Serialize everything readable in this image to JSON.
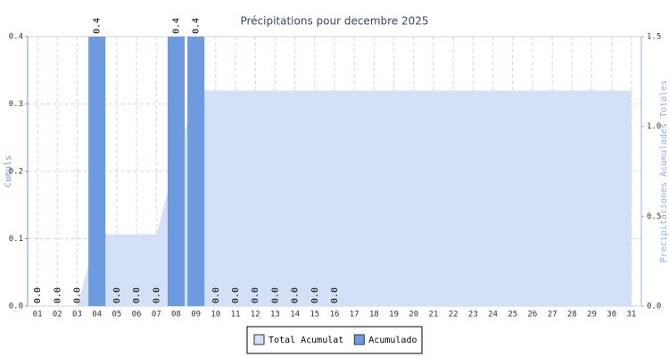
{
  "chart_data": {
    "type": "bar",
    "title": "Précipitations pour decembre 2025",
    "ylabel": "Cumuls",
    "y2label": "Precipitaciones Acumulades Totales",
    "categories": [
      "01",
      "02",
      "03",
      "04",
      "05",
      "06",
      "07",
      "08",
      "09",
      "10",
      "11",
      "12",
      "13",
      "14",
      "15",
      "16",
      "17",
      "18",
      "19",
      "20",
      "21",
      "22",
      "23",
      "24",
      "25",
      "26",
      "27",
      "28",
      "29",
      "30",
      "31"
    ],
    "series": [
      {
        "name": "Total Acumulat",
        "type": "area",
        "axis": "y2",
        "color": "#d3e0f8",
        "values": [
          0,
          0,
          0,
          0.4,
          0.4,
          0.4,
          0.4,
          0.8,
          1.2,
          1.2,
          1.2,
          1.2,
          1.2,
          1.2,
          1.2,
          1.2,
          1.2,
          1.2,
          1.2,
          1.2,
          1.2,
          1.2,
          1.2,
          1.2,
          1.2,
          1.2,
          1.2,
          1.2,
          1.2,
          1.2,
          1.2
        ]
      },
      {
        "name": "Acumulado",
        "type": "bar",
        "color": "#6e9ae0",
        "values": [
          0,
          0,
          0,
          0.4,
          0,
          0,
          0,
          0.4,
          0.4,
          0,
          0,
          0,
          0,
          0,
          0,
          0,
          null,
          null,
          null,
          null,
          null,
          null,
          null,
          null,
          null,
          null,
          null,
          null,
          null,
          null,
          null
        ],
        "value_labels": [
          "0.0",
          "0.0",
          "0.0",
          "0.4",
          "0.0",
          "0.0",
          "0.0",
          "0.4",
          "0.4",
          "0.0",
          "0.0",
          "0.0",
          "0.0",
          "0.0",
          "0.0",
          "0.0",
          null,
          null,
          null,
          null,
          null,
          null,
          null,
          null,
          null,
          null,
          null,
          null,
          null,
          null,
          null
        ]
      }
    ],
    "ylim": [
      0,
      0.4
    ],
    "yticks": [
      {
        "value": 0,
        "label": "0.0"
      },
      0.1,
      0.2,
      0.3,
      0.4
    ],
    "y2lim": [
      0,
      1.5
    ],
    "y2ticks": [
      {
        "value": 0,
        "label": "0.0"
      },
      0.5,
      {
        "value": 1,
        "label": "1.0"
      },
      1.5
    ],
    "grid": true,
    "legend": "bottom"
  }
}
